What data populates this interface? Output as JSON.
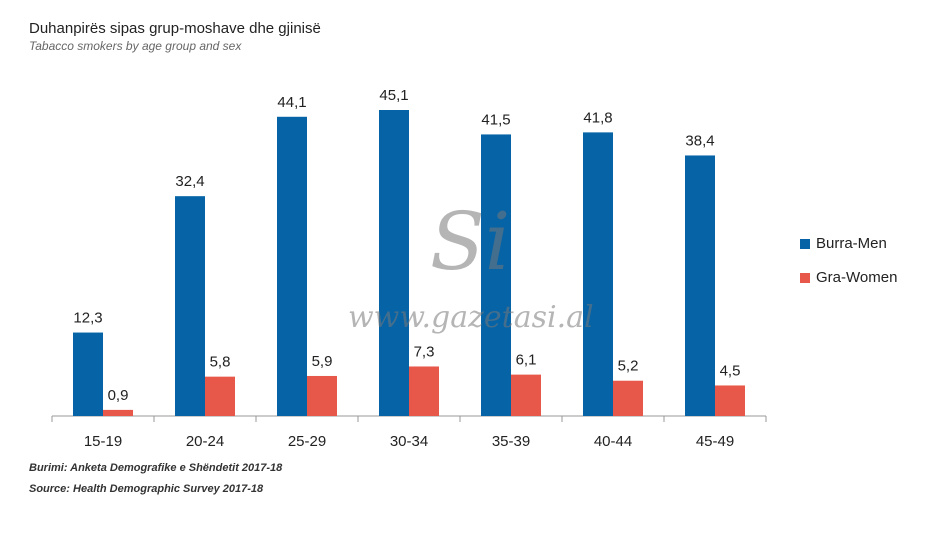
{
  "chart_data": {
    "type": "bar",
    "title": "Duhanpirës sipas grup-moshave dhe gjinisë",
    "subtitle": "Tabacco smokers by age group and sex",
    "categories": [
      "15-19",
      "20-24",
      "25-29",
      "30-34",
      "35-39",
      "40-44",
      "45-49"
    ],
    "series": [
      {
        "name": "Burra-Men",
        "color": "#0563a6",
        "values": [
          12.3,
          32.4,
          44.1,
          45.1,
          41.5,
          41.8,
          38.4
        ],
        "labels": [
          "12,3",
          "32,4",
          "44,1",
          "45,1",
          "41,5",
          "41,8",
          "38,4"
        ]
      },
      {
        "name": "Gra-Women",
        "color": "#e8584a",
        "values": [
          0.9,
          5.8,
          5.9,
          7.3,
          6.1,
          5.2,
          4.5
        ],
        "labels": [
          "0,9",
          "5,8",
          "5,9",
          "7,3",
          "6,1",
          "5,2",
          "4,5"
        ]
      }
    ],
    "ylim": [
      0,
      50
    ],
    "grid": false,
    "legend": "right"
  },
  "source_sq": "Burimi: Anketa Demografike e Shëndetit 2017-18",
  "source_en": "Source: Health Demographic Survey 2017-18",
  "watermark": {
    "logo": "Si",
    "url": "www.gazetasi.al"
  }
}
